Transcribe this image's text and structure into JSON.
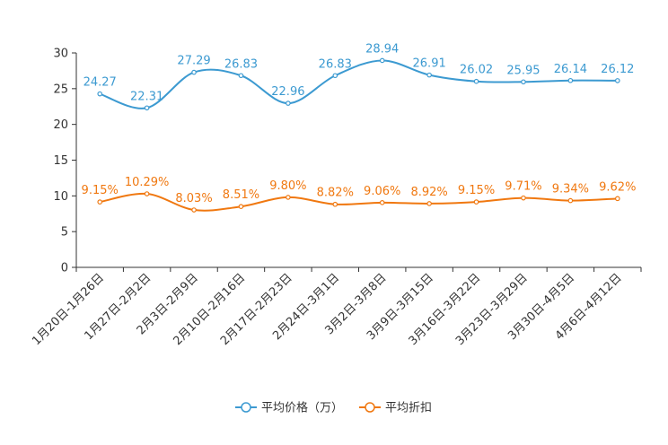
{
  "chart_data": {
    "type": "line",
    "title": "",
    "xlabel": "",
    "ylabel": "",
    "ylim": [
      0,
      30
    ],
    "yticks": [
      0,
      5,
      10,
      15,
      20,
      25,
      30
    ],
    "categories": [
      "1月20日-1月26日",
      "1月27日-2月2日",
      "2月3日-2月9日",
      "2月10日-2月16日",
      "2月17日-2月23日",
      "2月24日-3月1日",
      "3月2日-3月8日",
      "3月9日-3月15日",
      "3月16日-3月22日",
      "3月23日-3月29日",
      "3月30日-4月5日",
      "4月6日-4月12日"
    ],
    "series": [
      {
        "name": "平均价格（万）",
        "color": "#3c9ad1",
        "values": [
          24.27,
          22.31,
          27.29,
          26.83,
          22.96,
          26.83,
          28.94,
          26.91,
          26.02,
          25.95,
          26.14,
          26.12
        ],
        "labels": [
          "24.27",
          "22.31",
          "27.29",
          "26.83",
          "22.96",
          "26.83",
          "28.94",
          "26.91",
          "26.02",
          "25.95",
          "26.14",
          "26.12"
        ]
      },
      {
        "name": "平均折扣",
        "color": "#f07810",
        "values": [
          9.15,
          10.29,
          8.03,
          8.51,
          9.8,
          8.82,
          9.06,
          8.92,
          9.15,
          9.71,
          9.34,
          9.62
        ],
        "labels": [
          "9.15%",
          "10.29%",
          "8.03%",
          "8.51%",
          "9.80%",
          "8.82%",
          "9.06%",
          "8.92%",
          "9.15%",
          "9.71%",
          "9.34%",
          "9.62%"
        ]
      }
    ],
    "legend_position": "bottom-center",
    "grid": false
  }
}
